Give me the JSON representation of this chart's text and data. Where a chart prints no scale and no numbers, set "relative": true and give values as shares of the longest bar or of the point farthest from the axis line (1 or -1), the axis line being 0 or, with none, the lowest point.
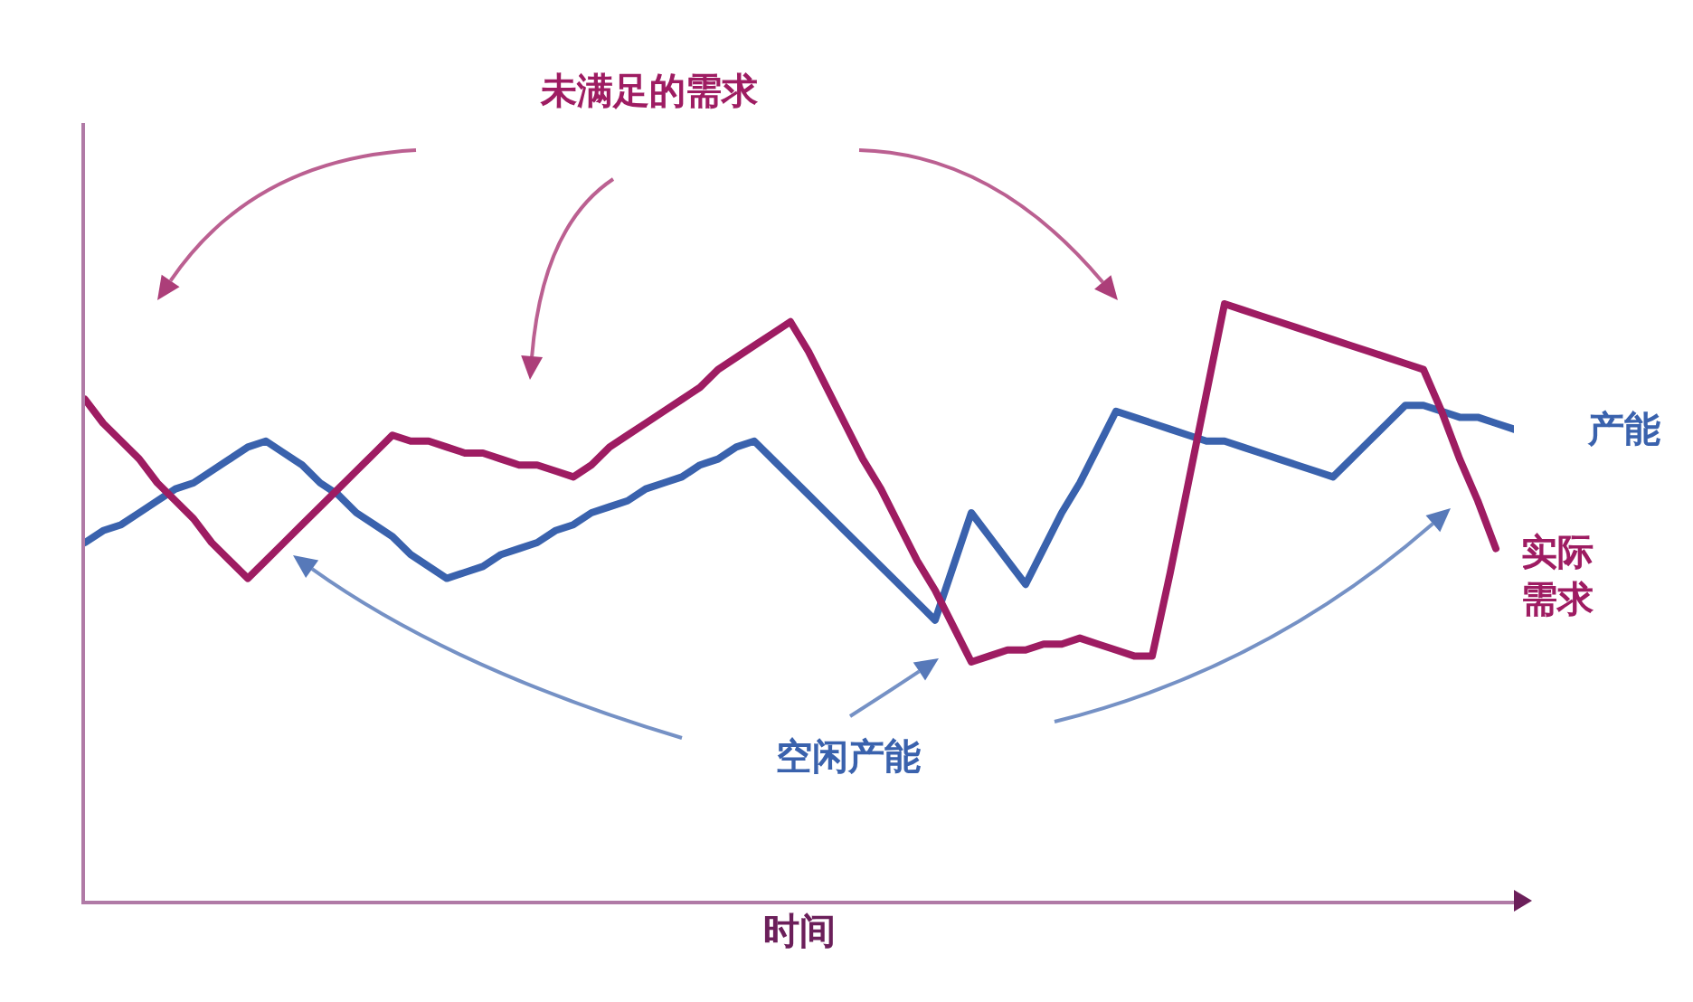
{
  "chart_data": {
    "type": "line",
    "relative": true,
    "xlabel": "时间",
    "categories": [
      null,
      null,
      null,
      null,
      null,
      null,
      null,
      null,
      null,
      null,
      null,
      null,
      null,
      null,
      null,
      null,
      null,
      null,
      null,
      null,
      null,
      null,
      null,
      null,
      null,
      null,
      null,
      null,
      null,
      null,
      null,
      null,
      null,
      null,
      null,
      null,
      null,
      null,
      null,
      null,
      null,
      null,
      null,
      null,
      null,
      null,
      null,
      null,
      null,
      null,
      null,
      null,
      null,
      null,
      null,
      null,
      null,
      null,
      null,
      null,
      null,
      null,
      null,
      null,
      null,
      null,
      null,
      null,
      null,
      null,
      null,
      null,
      null,
      null,
      null,
      null,
      null,
      null,
      null,
      null
    ],
    "series": [
      {
        "name": "产能",
        "color": "#3a62ad",
        "values": [
          0.6,
          0.62,
          0.63,
          0.65,
          0.67,
          0.69,
          0.7,
          0.72,
          0.74,
          0.76,
          0.77,
          0.75,
          0.73,
          0.7,
          0.68,
          0.65,
          0.63,
          0.61,
          0.58,
          0.56,
          0.54,
          0.55,
          0.56,
          0.58,
          0.59,
          0.6,
          0.62,
          0.63,
          0.65,
          0.66,
          0.67,
          0.69,
          0.7,
          0.71,
          0.73,
          0.74,
          0.76,
          0.77,
          0.74,
          0.71,
          0.68,
          0.65,
          0.62,
          0.59,
          0.56,
          0.53,
          0.5,
          0.47,
          0.56,
          0.65,
          0.61,
          0.57,
          0.53,
          0.59,
          0.65,
          0.7,
          0.76,
          0.82,
          0.81,
          0.8,
          0.79,
          0.78,
          0.77,
          0.77,
          0.76,
          0.75,
          0.74,
          0.73,
          0.72,
          0.71,
          0.74,
          0.77,
          0.8,
          0.83,
          0.83,
          0.82,
          0.81,
          0.81,
          0.8,
          0.79
        ]
      },
      {
        "name": "实际需求",
        "color": "#9e1c62",
        "values": [
          0.84,
          0.8,
          0.77,
          0.74,
          0.7,
          0.67,
          0.64,
          0.6,
          0.57,
          0.54,
          0.57,
          0.6,
          0.63,
          0.66,
          0.69,
          0.72,
          0.75,
          0.78,
          0.77,
          0.77,
          0.76,
          0.75,
          0.75,
          0.74,
          0.73,
          0.73,
          0.72,
          0.71,
          0.73,
          0.76,
          0.78,
          0.8,
          0.82,
          0.84,
          0.86,
          0.89,
          0.91,
          0.93,
          0.95,
          0.97,
          0.92,
          0.86,
          0.8,
          0.74,
          0.69,
          0.63,
          0.57,
          0.52,
          0.46,
          0.4,
          0.41,
          0.42,
          0.42,
          0.43,
          0.43,
          0.44,
          0.43,
          0.42,
          0.41,
          0.41,
          0.55,
          0.7,
          0.85,
          1,
          0.99,
          0.98,
          0.97,
          0.96,
          0.95,
          0.94,
          0.93,
          0.92,
          0.91,
          0.9,
          0.89,
          0.82,
          0.74,
          0.67,
          0.59,
          null
        ]
      }
    ],
    "annotations": [
      "未满足的需求",
      "空闲产能"
    ]
  }
}
